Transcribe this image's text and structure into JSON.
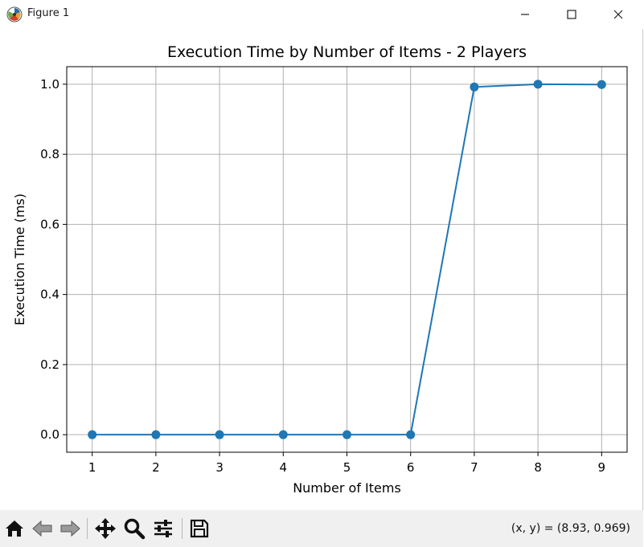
{
  "window": {
    "title": "Figure 1"
  },
  "toolbar": {
    "buttons": [
      "home-icon",
      "back-arrow-icon",
      "forward-arrow-icon",
      "pan-move-icon",
      "zoom-magnifier-icon",
      "configure-subplots-icon",
      "save-disk-icon"
    ],
    "coords": "(x, y) = (8.93, 0.969)"
  },
  "colors": {
    "line": "#1f77b4",
    "grid": "#b0b0b0",
    "toolbar_bg": "#f0f0f0"
  },
  "chart_data": {
    "type": "line",
    "title": "Execution Time by Number of Items - 2 Players",
    "xlabel": "Number of Items",
    "ylabel": "Execution Time (ms)",
    "x": [
      1,
      2,
      3,
      4,
      5,
      6,
      7,
      8,
      9
    ],
    "series": [
      {
        "values": [
          0.0,
          0.0,
          0.0,
          0.0,
          0.0,
          0.0,
          0.992,
          1.0,
          0.999
        ]
      }
    ],
    "xticks": [
      "1",
      "2",
      "3",
      "4",
      "5",
      "6",
      "7",
      "8",
      "9"
    ],
    "yticks": [
      "0.0",
      "0.2",
      "0.4",
      "0.6",
      "0.8",
      "1.0"
    ],
    "xlim": [
      0.6,
      9.4
    ],
    "ylim": [
      -0.05,
      1.05
    ],
    "grid": true,
    "markers": "circle",
    "legend": "none"
  }
}
